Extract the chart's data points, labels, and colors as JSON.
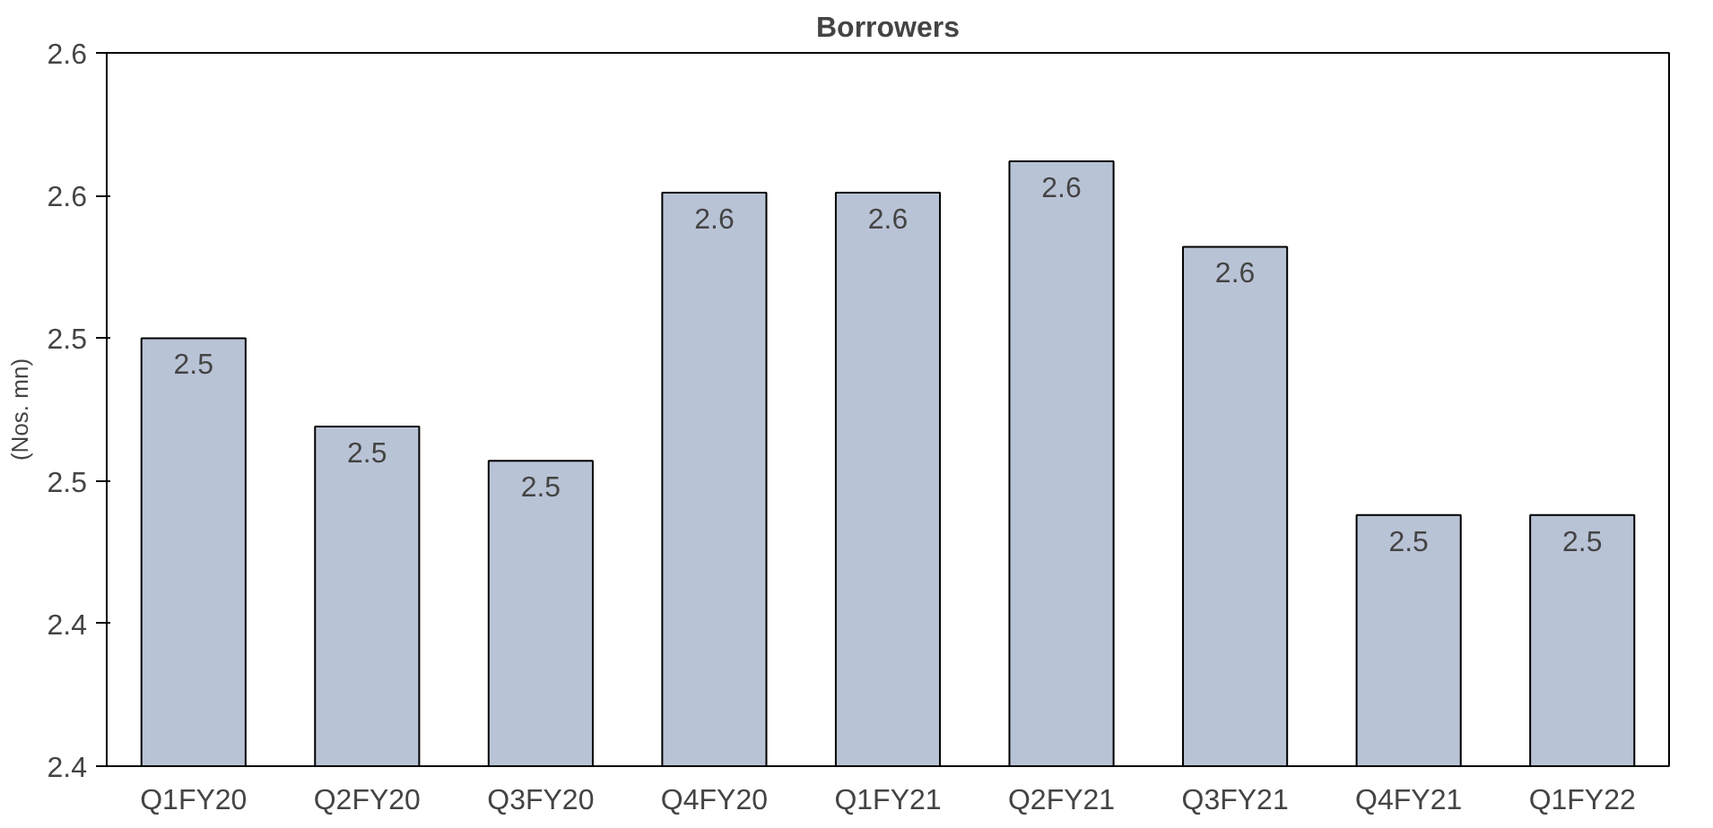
{
  "chart_data": {
    "type": "bar",
    "title": "Borrowers",
    "ylabel": "(Nos. mn)",
    "categories": [
      "Q1FY20",
      "Q2FY20",
      "Q3FY20",
      "Q4FY20",
      "Q1FY21",
      "Q2FY21",
      "Q3FY21",
      "Q4FY21",
      "Q1FY22"
    ],
    "values": [
      2.55,
      2.519,
      2.507,
      2.601,
      2.601,
      2.612,
      2.582,
      2.488,
      2.488
    ],
    "value_labels": [
      "2.5",
      "2.5",
      "2.5",
      "2.6",
      "2.6",
      "2.6",
      "2.6",
      "2.5",
      "2.5"
    ],
    "color": "#b9c3d6",
    "ylim": [
      2.4,
      2.65
    ],
    "yticks": [
      {
        "value": 2.4,
        "label": "2.4"
      },
      {
        "value": 2.45,
        "label": "2.4"
      },
      {
        "value": 2.5,
        "label": "2.5"
      },
      {
        "value": 2.55,
        "label": "2.5"
      },
      {
        "value": 2.6,
        "label": "2.6"
      },
      {
        "value": 2.65,
        "label": "2.6"
      }
    ],
    "grid": false
  }
}
